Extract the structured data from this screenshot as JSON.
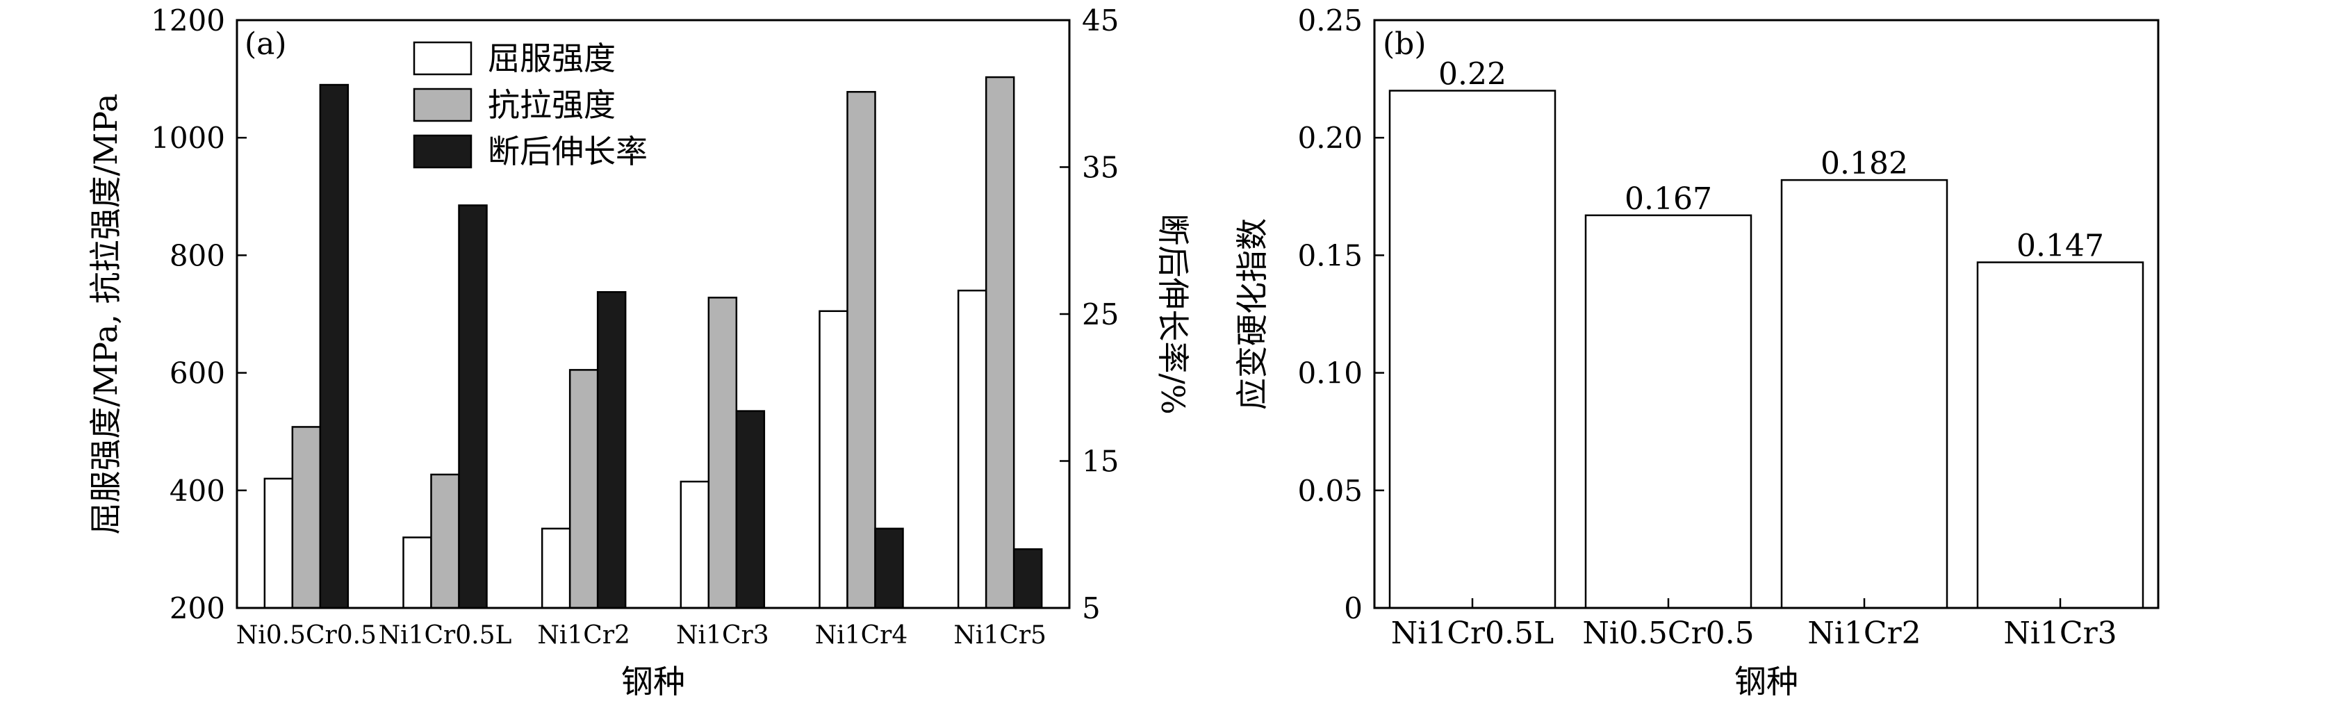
{
  "chart_data": [
    {
      "type": "bar",
      "panel_label": "(a)",
      "categories": [
        "Ni0.5Cr0.5",
        "Ni1Cr0.5L",
        "Ni1Cr2",
        "Ni1Cr3",
        "Ni1Cr4",
        "Ni1Cr5"
      ],
      "xlabel": "钢种",
      "ylabel": "屈服强度/MPa, 抗拉强度/MPa",
      "ylabel_right": "断后伸长率/%",
      "ylim": [
        200,
        1200
      ],
      "ylim_right": [
        5,
        45
      ],
      "yticks": [
        200,
        400,
        600,
        800,
        1000,
        1200
      ],
      "yticks_right": [
        5,
        15,
        25,
        35,
        45
      ],
      "legend_position": "top-center",
      "grid": false,
      "series": [
        {
          "name": "屈服强度",
          "axis": "left",
          "color": "#ffffff",
          "values": [
            420,
            320,
            335,
            415,
            705,
            740
          ]
        },
        {
          "name": "抗拉强度",
          "axis": "left",
          "color": "#b3b3b3",
          "values": [
            508,
            427,
            605,
            728,
            1078,
            1103
          ]
        },
        {
          "name": "断后伸长率",
          "axis": "right",
          "color": "#1a1a1a",
          "values": [
            40.6,
            32.4,
            26.5,
            18.4,
            10.4,
            9.0
          ]
        }
      ]
    },
    {
      "type": "bar",
      "panel_label": "(b)",
      "categories": [
        "Ni1Cr0.5L",
        "Ni0.5Cr0.5",
        "Ni1Cr2",
        "Ni1Cr3"
      ],
      "values": [
        0.22,
        0.167,
        0.182,
        0.147
      ],
      "data_labels": [
        "0.22",
        "0.167",
        "0.182",
        "0.147"
      ],
      "xlabel": "钢种",
      "ylabel": "应变硬化指数",
      "ylim": [
        0,
        0.25
      ],
      "yticks": [
        "0",
        "0.05",
        "0.10",
        "0.15",
        "0.20",
        "0.25"
      ],
      "grid": false,
      "color": "#ffffff"
    }
  ]
}
